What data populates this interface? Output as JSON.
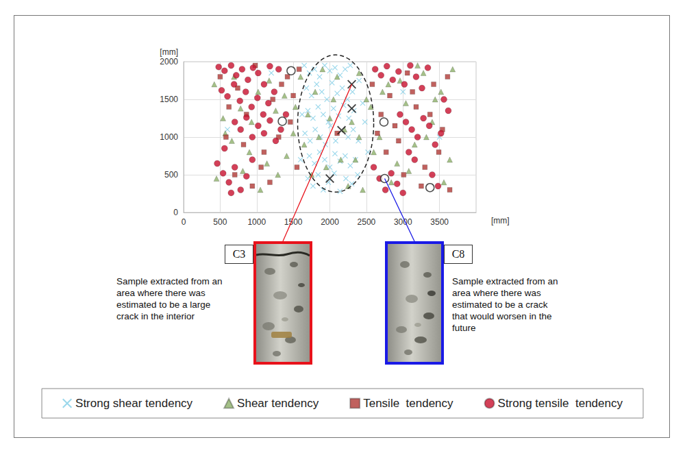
{
  "chart_data": {
    "type": "scatter",
    "x_label": "[mm]",
    "y_label": "[mm]",
    "xlim": [
      0,
      4000
    ],
    "xticks": [
      0,
      500,
      1000,
      1500,
      2000,
      2500,
      3000,
      3500
    ],
    "ylim": [
      0,
      2000
    ],
    "yticks": [
      0,
      500,
      1000,
      1500,
      2000
    ],
    "grid": true,
    "legend": "bottom",
    "series": [
      {
        "name": "Strong shear tendency",
        "color": "#7fcde6",
        "marker": "x",
        "x": [
          1650,
          1720,
          1790,
          1860,
          1930,
          2000,
          2070,
          2140,
          2210,
          2280,
          1680,
          1750,
          1820,
          1890,
          1960,
          2030,
          2100,
          2170,
          2240,
          2310,
          1700,
          1770,
          1840,
          1910,
          1980,
          2050,
          2120,
          2190,
          2260,
          2330,
          1660,
          1730,
          1800,
          1870,
          1940,
          2010,
          2080,
          2250,
          2320,
          2390,
          1720,
          1790,
          1860,
          1930,
          2000,
          2070,
          2140,
          2210,
          2280,
          2350,
          1700,
          1770,
          1840,
          1910,
          1980,
          2060,
          2140,
          2220,
          2300,
          2380,
          2400,
          2450,
          2480,
          2520,
          1620,
          1600,
          600,
          1200,
          3000,
          3500
        ],
        "values": [
          1950,
          1850,
          1900,
          1800,
          1950,
          1880,
          1920,
          1820,
          1900,
          1950,
          1650,
          1550,
          1700,
          1600,
          1500,
          1720,
          1580,
          1650,
          1500,
          1600,
          1350,
          1250,
          1400,
          1300,
          1200,
          1380,
          1280,
          1420,
          1250,
          1350,
          1050,
          950,
          1100,
          1000,
          900,
          1150,
          950,
          1000,
          1100,
          950,
          750,
          650,
          800,
          700,
          600,
          780,
          680,
          750,
          620,
          700,
          450,
          350,
          500,
          300,
          400,
          520,
          280,
          450,
          380,
          500,
          1750,
          1450,
          1200,
          800,
          1300,
          700,
          1100,
          1850,
          1600,
          1000
        ]
      },
      {
        "name": "Shear tendency",
        "color": "#8db06a",
        "marker": "triangle",
        "x": [
          420,
          540,
          660,
          780,
          900,
          1020,
          1140,
          1260,
          1380,
          1500,
          450,
          570,
          690,
          810,
          930,
          1050,
          1170,
          1290,
          1410,
          1530,
          1600,
          1650,
          1700,
          1750,
          1800,
          2300,
          2350,
          2400,
          2450,
          2500,
          2560,
          2680,
          2800,
          2920,
          3040,
          3160,
          3280,
          3400,
          3520,
          3640,
          2600,
          2720,
          2840,
          2960,
          3080,
          3200,
          3320,
          3440,
          3560,
          3680,
          1900,
          2050,
          2150,
          2250,
          1850,
          2000,
          2100,
          2200,
          1950,
          2400
        ],
        "values": [
          1700,
          1250,
          950,
          1380,
          800,
          1600,
          650,
          1350,
          1550,
          1050,
          450,
          1050,
          1800,
          550,
          1200,
          300,
          1750,
          500,
          750,
          1400,
          1800,
          900,
          1300,
          500,
          1600,
          1200,
          700,
          1850,
          300,
          1500,
          1400,
          1000,
          1700,
          650,
          1450,
          900,
          1850,
          1200,
          1600,
          700,
          800,
          1600,
          400,
          1750,
          550,
          1950,
          1000,
          1500,
          400,
          1900,
          1900,
          1500,
          700,
          350,
          1000,
          1250,
          1800,
          1100,
          600,
          1000
        ]
      },
      {
        "name": "Tensile  tendency",
        "color": "#b03a36",
        "marker": "square",
        "x": [
          500,
          620,
          740,
          860,
          980,
          1100,
          1220,
          1340,
          1460,
          1550,
          580,
          700,
          820,
          940,
          1060,
          1180,
          1300,
          1420,
          1500,
          1580,
          2580,
          2700,
          2820,
          2940,
          3060,
          3180,
          3300,
          3420,
          3540,
          3640,
          2650,
          2770,
          2890,
          3010,
          3130,
          3250,
          3370,
          3490,
          3610,
          2100
        ],
        "values": [
          1800,
          1400,
          1650,
          1300,
          1950,
          800,
          1500,
          1700,
          1200,
          600,
          1000,
          500,
          900,
          350,
          600,
          400,
          1000,
          1800,
          1550,
          1900,
          1700,
          1300,
          1550,
          950,
          1850,
          1400,
          600,
          1700,
          1100,
          300,
          1050,
          800,
          1150,
          500,
          1600,
          350,
          1300,
          800,
          1800,
          1050
        ]
      },
      {
        "name": "Strong tensile  tendency",
        "color": "#c8102e",
        "marker": "circle",
        "x": [
          480,
          560,
          650,
          720,
          800,
          880,
          950,
          1020,
          1100,
          1180,
          520,
          600,
          690,
          770,
          850,
          930,
          1010,
          1090,
          1160,
          1240,
          700,
          780,
          860,
          940,
          1020,
          1100,
          1180,
          1260,
          1330,
          1400,
          460,
          540,
          620,
          700,
          780,
          860,
          940,
          560,
          650,
          1300,
          2620,
          2700,
          2780,
          2860,
          2940,
          3020,
          3100,
          3180,
          3260,
          3340,
          2960,
          3040,
          3120,
          3200,
          3280,
          3360,
          3440,
          3520,
          3080,
          3160,
          2600,
          2680,
          2760,
          2840,
          2920,
          3000,
          3400,
          3480,
          3560,
          3620
        ],
        "values": [
          1930,
          1880,
          1950,
          1820,
          1900,
          1760,
          1920,
          1850,
          1700,
          1940,
          1620,
          1540,
          1700,
          1480,
          1600,
          1400,
          1520,
          1300,
          1450,
          1600,
          1200,
          1100,
          1260,
          1000,
          1150,
          1050,
          1220,
          950,
          1100,
          1300,
          650,
          520,
          400,
          600,
          300,
          480,
          700,
          850,
          260,
          1900,
          1900,
          1820,
          1940,
          1760,
          1870,
          1700,
          1950,
          1800,
          1650,
          1920,
          1300,
          1200,
          1100,
          1000,
          1250,
          1150,
          900,
          1050,
          800,
          700,
          600,
          450,
          300,
          520,
          380,
          260,
          500,
          350,
          1500,
          1350
        ]
      },
      {
        "color": "#ffffff",
        "marker": "circle",
        "x": [
          1470,
          1350,
          2740,
          2750,
          3370
        ],
        "values": [
          1880,
          1210,
          1200,
          450,
          330
        ]
      },
      {
        "color": "#111111",
        "marker": "x",
        "x": [
          2300,
          2300,
          2160,
          2000
        ],
        "values": [
          1700,
          1380,
          1090,
          450
        ]
      }
    ],
    "annotations": {
      "ellipse": {
        "x": 2080,
        "y": 1180,
        "rx": 520,
        "ry": 910,
        "line_style": "dashed"
      },
      "samples": [
        {
          "label": "C3",
          "x": 2300,
          "y": 1700,
          "color": "#e8121b",
          "text": [
            "Sample extracted from an",
            "area where there was",
            "estimated to be a large",
            "crack in the interior"
          ]
        },
        {
          "label": "C8",
          "x": 2750,
          "y": 450,
          "color": "#1a1ae6",
          "text": [
            "Sample extracted from an",
            "area where there was",
            "estimated to be a crack",
            "that would worsen in the",
            "future"
          ]
        }
      ]
    }
  }
}
